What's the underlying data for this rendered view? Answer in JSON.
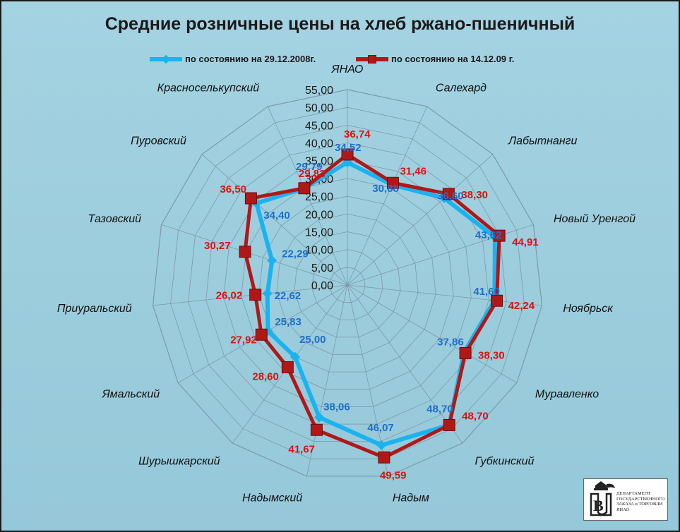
{
  "chart_data": {
    "type": "radar",
    "title": "Средние розничные цены на хлеб ржано-пшеничный",
    "categories": [
      "ЯНАО",
      "Салехард",
      "Лабытнанги",
      "Новый Уренгой",
      "Ноябрьск",
      "Муравленко",
      "Губкинский",
      "Надым",
      "Надымский",
      "Шурышкарский",
      "Ямальский",
      "Приуральский",
      "Тазовский",
      "Пуровский",
      "Красноселькупский"
    ],
    "rlim": [
      0,
      55
    ],
    "ticks": [
      "0,00",
      "5,00",
      "10,00",
      "15,00",
      "20,00",
      "25,00",
      "30,00",
      "35,00",
      "40,00",
      "45,00",
      "50,00",
      "55,00"
    ],
    "series": [
      {
        "name": "по состоянию на 29.12.2008г.",
        "color": "#1ab3ef",
        "values": [
          34.52,
          30.88,
          36.6,
          43.62,
          41.6,
          37.86,
          48.7,
          46.07,
          38.06,
          25.0,
          25.83,
          22.62,
          22.29,
          34.4,
          29.79
        ],
        "labels": [
          "34,52",
          "30,88",
          "36,60",
          "43,62",
          "41,60",
          "37,86",
          "48,70",
          "46,07",
          "38,06",
          "25,00",
          "25,83",
          "22,62",
          "22,29",
          "34,40",
          "29,79"
        ]
      },
      {
        "name": "по состоянию на 14.12.09 г.",
        "color": "#b01818",
        "values": [
          36.74,
          31.46,
          38.3,
          44.91,
          42.24,
          38.3,
          48.7,
          49.59,
          41.67,
          28.6,
          27.92,
          26.02,
          30.27,
          36.5,
          29.83
        ],
        "labels": [
          "36,74",
          "31,46",
          "38,30",
          "44,91",
          "42,24",
          "38,30",
          "48,70",
          "49,59",
          "41,67",
          "28,60",
          "27,92",
          "26,02",
          "30,27",
          "36,50",
          "29,83"
        ]
      }
    ],
    "legend_position": "top"
  },
  "logo": {
    "lines": [
      "ДЕПАРТАМЕНТ",
      "ГОСУДАРСТВЕННОГО",
      "ЗАКАЗА и ТОРГОВЛИ ЯНАО"
    ]
  }
}
